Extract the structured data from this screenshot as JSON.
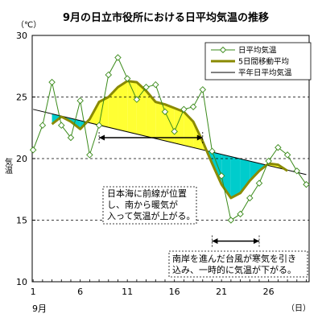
{
  "chart_data": {
    "type": "line",
    "title": "9月の日立市役所における日平均気温の推移",
    "ylabel": "気温",
    "yunit": "（℃）",
    "xunit": "（日）",
    "xcaption": "9月",
    "xlim": [
      1,
      30
    ],
    "ylim": [
      10,
      30
    ],
    "xticks": [
      1,
      6,
      11,
      16,
      21,
      26
    ],
    "yticks": [
      10,
      15,
      20,
      25,
      30
    ],
    "dashed_gridlines": [
      15,
      20,
      25
    ],
    "series": [
      {
        "name": "日平均気温",
        "x": [
          1,
          2,
          3,
          4,
          5,
          6,
          7,
          8,
          9,
          10,
          11,
          12,
          13,
          14,
          15,
          16,
          17,
          18,
          19,
          20,
          21,
          22,
          23,
          24,
          25,
          26,
          27,
          28,
          29,
          30
        ],
        "values": [
          20.7,
          22.7,
          26.2,
          22.7,
          21.7,
          24.7,
          20.3,
          22.7,
          26.8,
          28.2,
          26.5,
          24.8,
          25.8,
          26.0,
          23.8,
          22.2,
          24.0,
          24.2,
          25.6,
          20.6,
          18.6,
          15.0,
          15.5,
          16.8,
          18.0,
          19.8,
          20.9,
          20.3,
          19.0,
          17.9
        ],
        "color": "#3a8a1a"
      },
      {
        "name": "5日間移動平均",
        "x": [
          3,
          4,
          5,
          6,
          7,
          8,
          9,
          10,
          11,
          12,
          13,
          14,
          15,
          16,
          17,
          18,
          19,
          20,
          21,
          22,
          23,
          24,
          25,
          26,
          27,
          28
        ],
        "values": [
          22.8,
          23.4,
          23.0,
          22.4,
          23.2,
          24.6,
          25.0,
          25.8,
          26.3,
          26.2,
          25.5,
          24.6,
          24.4,
          24.1,
          23.8,
          23.0,
          21.4,
          19.6,
          17.9,
          16.8,
          17.2,
          18.2,
          19.0,
          19.6,
          19.5,
          19.0
        ],
        "color": "#8a8a00"
      },
      {
        "name": "平年日平均気温",
        "x": [
          1,
          30
        ],
        "values": [
          24.0,
          18.7
        ],
        "color": "#000000"
      }
    ],
    "fill_colors": {
      "above": "#ffff33",
      "below": "#00cccc"
    },
    "legend": "top-right",
    "annotations": [
      {
        "lines": [
          "日本海に前線が位置",
          "し、南から暖気が",
          "入って気温が上がる。"
        ],
        "span": [
          8,
          19
        ]
      },
      {
        "lines": [
          "南岸を進んだ台風が寒気を引き",
          "込み、一時的に気温が下がる。"
        ],
        "span": [
          20,
          25
        ]
      }
    ]
  }
}
